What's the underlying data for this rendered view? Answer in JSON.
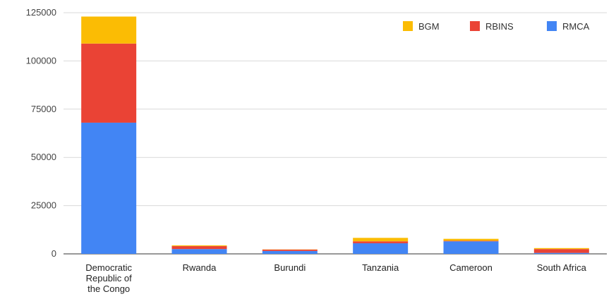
{
  "chart_data": {
    "type": "bar",
    "stacked": true,
    "title": "",
    "xlabel": "",
    "ylabel": "",
    "ylim": [
      0,
      125000
    ],
    "yticks": [
      "0",
      "25000",
      "50000",
      "75000",
      "100000",
      "125000"
    ],
    "ytick_values": [
      0,
      25000,
      50000,
      75000,
      100000,
      125000
    ],
    "grid": true,
    "legend_position": "top-right",
    "categories": [
      [
        "Democratic",
        "Republic of",
        "the Congo"
      ],
      [
        "Rwanda"
      ],
      [
        "Burundi"
      ],
      [
        "Tanzania"
      ],
      [
        "Cameroon"
      ],
      [
        "South Africa"
      ]
    ],
    "series": [
      {
        "name": "RMCA",
        "color": "#4285f4",
        "values": [
          68000,
          2500,
          1500,
          5500,
          6500,
          500
        ]
      },
      {
        "name": "RBINS",
        "color": "#ea4335",
        "values": [
          41000,
          1500,
          700,
          1000,
          300,
          2000
        ]
      },
      {
        "name": "BGM",
        "color": "#fbbc04",
        "values": [
          14000,
          400,
          100,
          1800,
          1000,
          500
        ]
      }
    ],
    "legend_order": [
      "BGM",
      "RBINS",
      "RMCA"
    ]
  }
}
